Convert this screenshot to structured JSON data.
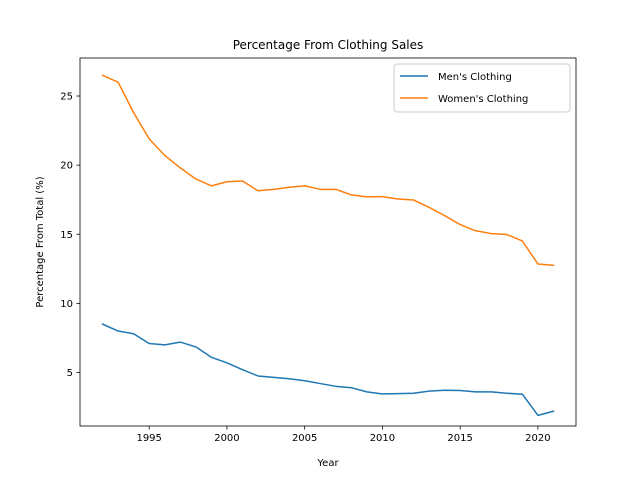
{
  "chart_data": {
    "type": "line",
    "title": "Percentage From Clothing Sales",
    "xlabel": "Year",
    "ylabel": "Percentage From Total (%)",
    "xlim": [
      1990.55,
      2022.45
    ],
    "ylim": [
      1.13,
      27.75
    ],
    "xticks": [
      1995,
      2000,
      2005,
      2010,
      2015,
      2020
    ],
    "yticks": [
      5,
      10,
      15,
      20,
      25
    ],
    "grid": false,
    "legend_position": "upper right",
    "x": [
      1992,
      1993,
      1994,
      1995,
      1996,
      1997,
      1998,
      1999,
      2000,
      2001,
      2002,
      2003,
      2004,
      2005,
      2006,
      2007,
      2008,
      2009,
      2010,
      2011,
      2012,
      2013,
      2014,
      2015,
      2016,
      2017,
      2018,
      2019,
      2020,
      2021
    ],
    "series": [
      {
        "name": "Men's Clothing",
        "color": "#1f77b4",
        "values": [
          8.5,
          8.0,
          7.8,
          7.1,
          7.0,
          7.2,
          6.85,
          6.1,
          5.7,
          5.2,
          4.75,
          4.65,
          4.55,
          4.4,
          4.2,
          4.0,
          3.9,
          3.6,
          3.45,
          3.47,
          3.5,
          3.65,
          3.72,
          3.7,
          3.6,
          3.6,
          3.5,
          3.43,
          1.9,
          2.2
        ]
      },
      {
        "name": "Women's Clothing",
        "color": "#ff7f0e",
        "values": [
          26.5,
          26.0,
          23.8,
          21.9,
          20.7,
          19.8,
          19.0,
          18.5,
          18.8,
          18.85,
          18.15,
          18.25,
          18.4,
          18.5,
          18.25,
          18.25,
          17.85,
          17.7,
          17.72,
          17.55,
          17.48,
          16.95,
          16.35,
          15.7,
          15.25,
          15.05,
          14.98,
          14.52,
          12.85,
          12.75
        ]
      }
    ]
  }
}
